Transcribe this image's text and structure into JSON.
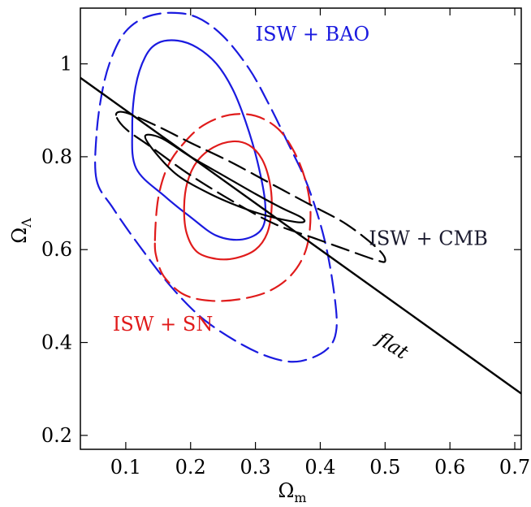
{
  "chart_data": {
    "type": "contour",
    "title": "",
    "xlabel": "Ω",
    "xlabel_sub": "m",
    "ylabel": "Ω",
    "ylabel_sub": "Λ",
    "xlim": [
      0.03,
      0.71
    ],
    "ylim": [
      0.17,
      1.12
    ],
    "xticks": [
      0.1,
      0.2,
      0.3,
      0.4,
      0.5,
      0.6,
      0.7
    ],
    "xtick_labels": [
      "0.1",
      "0.2",
      "0.3",
      "0.4",
      "0.5",
      "0.6",
      "0.7"
    ],
    "yticks": [
      0.2,
      0.4,
      0.6,
      0.8,
      1.0
    ],
    "ytick_labels": [
      "0.2",
      "0.4",
      "0.6",
      "0.8",
      "1"
    ],
    "grid": false,
    "colors": {
      "bao": "#1a1adf",
      "sn": "#e01b1b",
      "cmb": "#000000",
      "flat": "#000000"
    },
    "annotations": [
      {
        "text": "ISW + BAO",
        "x": 0.3,
        "y": 1.05,
        "color": "#1a1adf"
      },
      {
        "text": "ISW + SN",
        "x": 0.08,
        "y": 0.425,
        "color": "#e01b1b"
      },
      {
        "text": "ISW + CMB",
        "x": 0.475,
        "y": 0.61,
        "color": "#1a1a2e"
      },
      {
        "text": "flat",
        "x": 0.485,
        "y": 0.4,
        "color": "#000000",
        "italic": true,
        "rotate": 32
      }
    ],
    "lines": [
      {
        "name": "flat",
        "style": "solid",
        "color": "#000000",
        "points": [
          [
            0.03,
            0.97
          ],
          [
            0.71,
            0.29
          ]
        ]
      }
    ],
    "contours": [
      {
        "series": "ISW + BAO",
        "level": "inner",
        "style": "solid",
        "color": "#1a1adf",
        "points": [
          [
            0.116,
            0.775
          ],
          [
            0.11,
            0.86
          ],
          [
            0.115,
            0.95
          ],
          [
            0.13,
            1.015
          ],
          [
            0.15,
            1.045
          ],
          [
            0.18,
            1.05
          ],
          [
            0.21,
            1.035
          ],
          [
            0.24,
            1.0
          ],
          [
            0.265,
            0.945
          ],
          [
            0.285,
            0.875
          ],
          [
            0.303,
            0.79
          ],
          [
            0.315,
            0.7
          ],
          [
            0.31,
            0.645
          ],
          [
            0.28,
            0.622
          ],
          [
            0.24,
            0.63
          ],
          [
            0.2,
            0.67
          ],
          [
            0.16,
            0.715
          ],
          [
            0.116,
            0.775
          ]
        ]
      },
      {
        "series": "ISW + BAO",
        "level": "outer",
        "style": "dashed",
        "color": "#1a1adf",
        "points": [
          [
            0.055,
            0.75
          ],
          [
            0.055,
            0.85
          ],
          [
            0.065,
            0.95
          ],
          [
            0.08,
            1.02
          ],
          [
            0.1,
            1.07
          ],
          [
            0.13,
            1.1
          ],
          [
            0.17,
            1.11
          ],
          [
            0.21,
            1.1
          ],
          [
            0.25,
            1.06
          ],
          [
            0.29,
            0.99
          ],
          [
            0.32,
            0.915
          ],
          [
            0.35,
            0.83
          ],
          [
            0.38,
            0.74
          ],
          [
            0.405,
            0.63
          ],
          [
            0.42,
            0.52
          ],
          [
            0.425,
            0.43
          ],
          [
            0.41,
            0.385
          ],
          [
            0.37,
            0.36
          ],
          [
            0.33,
            0.365
          ],
          [
            0.28,
            0.395
          ],
          [
            0.22,
            0.45
          ],
          [
            0.17,
            0.52
          ],
          [
            0.12,
            0.61
          ],
          [
            0.08,
            0.69
          ],
          [
            0.055,
            0.75
          ]
        ]
      },
      {
        "series": "ISW + SN",
        "level": "inner",
        "style": "solid",
        "color": "#e01b1b",
        "points": [
          [
            0.19,
            0.69
          ],
          [
            0.195,
            0.745
          ],
          [
            0.21,
            0.79
          ],
          [
            0.235,
            0.82
          ],
          [
            0.265,
            0.833
          ],
          [
            0.29,
            0.825
          ],
          [
            0.31,
            0.795
          ],
          [
            0.322,
            0.745
          ],
          [
            0.325,
            0.69
          ],
          [
            0.318,
            0.635
          ],
          [
            0.3,
            0.6
          ],
          [
            0.27,
            0.582
          ],
          [
            0.24,
            0.58
          ],
          [
            0.21,
            0.595
          ],
          [
            0.194,
            0.635
          ],
          [
            0.19,
            0.69
          ]
        ]
      },
      {
        "series": "ISW + SN",
        "level": "outer",
        "style": "dashed",
        "color": "#e01b1b",
        "points": [
          [
            0.145,
            0.62
          ],
          [
            0.15,
            0.71
          ],
          [
            0.165,
            0.78
          ],
          [
            0.19,
            0.83
          ],
          [
            0.22,
            0.868
          ],
          [
            0.26,
            0.89
          ],
          [
            0.3,
            0.888
          ],
          [
            0.335,
            0.86
          ],
          [
            0.36,
            0.81
          ],
          [
            0.378,
            0.745
          ],
          [
            0.385,
            0.675
          ],
          [
            0.378,
            0.6
          ],
          [
            0.355,
            0.545
          ],
          [
            0.32,
            0.51
          ],
          [
            0.275,
            0.493
          ],
          [
            0.23,
            0.49
          ],
          [
            0.19,
            0.503
          ],
          [
            0.16,
            0.54
          ],
          [
            0.148,
            0.58
          ],
          [
            0.145,
            0.62
          ]
        ]
      },
      {
        "series": "ISW + CMB",
        "level": "inner",
        "style": "solid",
        "color": "#000000",
        "points": [
          [
            0.13,
            0.845
          ],
          [
            0.155,
            0.84
          ],
          [
            0.2,
            0.8
          ],
          [
            0.25,
            0.76
          ],
          [
            0.3,
            0.72
          ],
          [
            0.34,
            0.69
          ],
          [
            0.37,
            0.67
          ],
          [
            0.375,
            0.66
          ],
          [
            0.36,
            0.66
          ],
          [
            0.32,
            0.672
          ],
          [
            0.28,
            0.69
          ],
          [
            0.23,
            0.72
          ],
          [
            0.18,
            0.76
          ],
          [
            0.145,
            0.81
          ],
          [
            0.13,
            0.845
          ]
        ]
      },
      {
        "series": "ISW + CMB",
        "level": "outer",
        "style": "dashed",
        "color": "#000000",
        "points": [
          [
            0.085,
            0.89
          ],
          [
            0.1,
            0.895
          ],
          [
            0.15,
            0.865
          ],
          [
            0.2,
            0.83
          ],
          [
            0.26,
            0.79
          ],
          [
            0.32,
            0.745
          ],
          [
            0.38,
            0.7
          ],
          [
            0.44,
            0.655
          ],
          [
            0.49,
            0.6
          ],
          [
            0.5,
            0.575
          ],
          [
            0.485,
            0.578
          ],
          [
            0.44,
            0.6
          ],
          [
            0.39,
            0.625
          ],
          [
            0.33,
            0.655
          ],
          [
            0.27,
            0.7
          ],
          [
            0.2,
            0.76
          ],
          [
            0.14,
            0.82
          ],
          [
            0.1,
            0.86
          ],
          [
            0.085,
            0.89
          ]
        ]
      }
    ]
  }
}
